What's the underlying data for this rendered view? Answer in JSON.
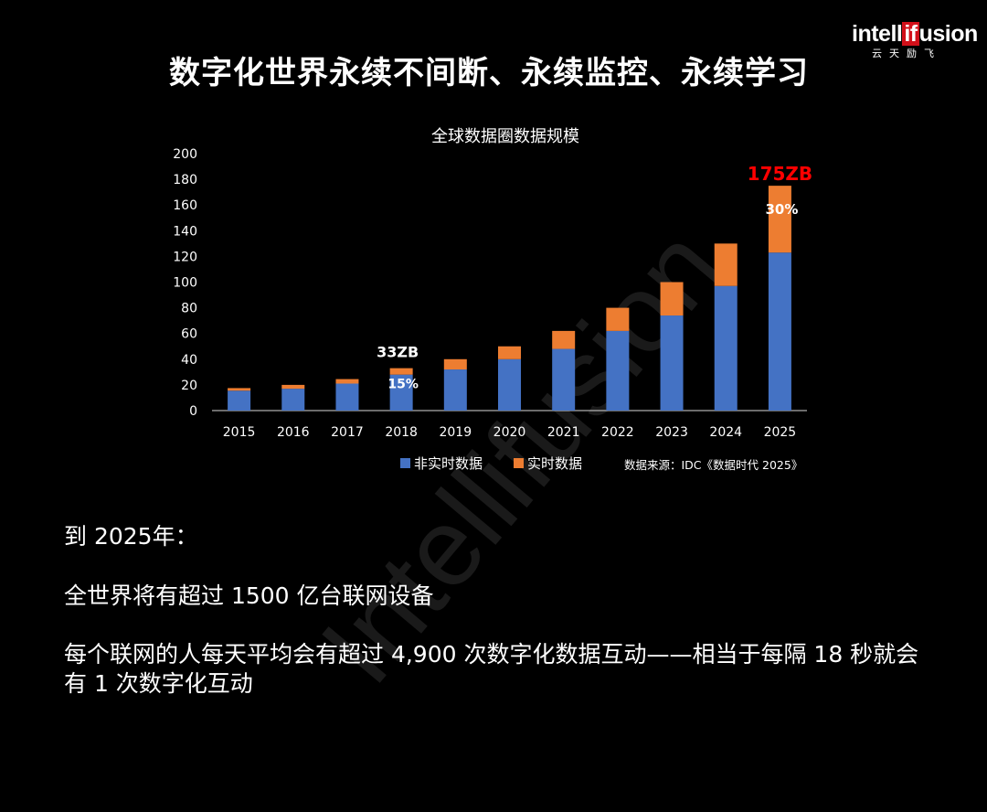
{
  "slide": {
    "title": "数字化世界永续不间断、永续监控、永续学习",
    "logo_text_before": "intell",
    "logo_text_box": "if",
    "logo_text_after": "usion",
    "logo_cn": "云天励飞",
    "watermark": "Intellifusion"
  },
  "colors": {
    "background": "#000000",
    "non_realtime": "#4472C4",
    "realtime": "#ED7D31",
    "highlight_red": "#FF0000",
    "logo_red": "#D2101A"
  },
  "chart_data": {
    "type": "bar",
    "stacked": true,
    "title": "全球数据圈数据规模",
    "categories": [
      "2015",
      "2016",
      "2017",
      "2018",
      "2019",
      "2020",
      "2021",
      "2022",
      "2023",
      "2024",
      "2025"
    ],
    "series": [
      {
        "name": "非实时数据",
        "values": [
          15.5,
          17,
          21,
          28,
          32,
          40,
          48,
          62,
          74,
          97,
          123
        ]
      },
      {
        "name": "实时数据",
        "values": [
          2,
          3,
          3.5,
          5,
          8,
          10,
          14,
          18,
          26,
          33,
          52
        ]
      }
    ],
    "ylim": [
      0,
      200
    ],
    "yticks": [
      0,
      20,
      40,
      60,
      80,
      100,
      120,
      140,
      160,
      180,
      200
    ],
    "grid": false,
    "legend_position": "bottom",
    "source_note": "数据来源：IDC《数据时代 2025》",
    "annotations": [
      {
        "category": "2018",
        "total_label": "33ZB",
        "percent_label": "15%"
      },
      {
        "category": "2025",
        "total_label": "175ZB",
        "percent_label": "30%"
      }
    ]
  },
  "text": {
    "line1": "到 2025年：",
    "line2": "全世界将有超过 1500 亿台联网设备",
    "line3": "每个联网的人每天平均会有超过 4,900 次数字化数据互动——相当于每隔 18 秒就会有 1 次数字化互动"
  }
}
